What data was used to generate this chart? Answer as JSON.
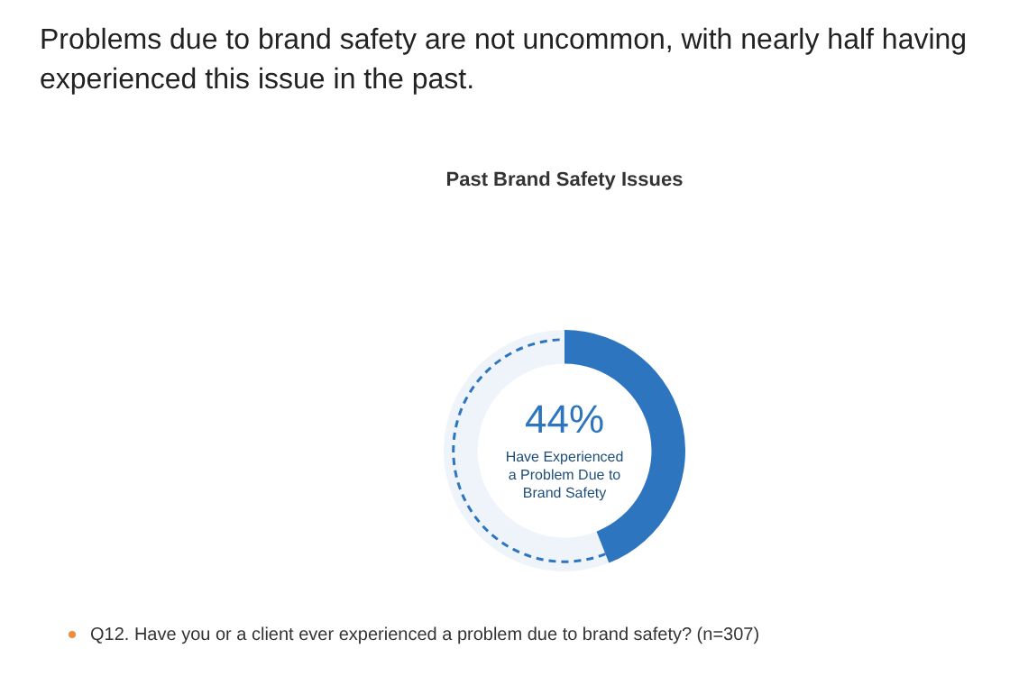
{
  "chart_data": {
    "type": "donut",
    "title": "Problems due to brand safety are not uncommon, with nearly half having  experienced this issue in the past.",
    "subtitle": "Past Brand Safety Issues",
    "categories": [
      "Have Experienced a Problem Due to Brand Safety",
      null
    ],
    "values": [
      44,
      56
    ],
    "colors": [
      "#2e75c0",
      "#2e75c0"
    ],
    "value_labels": [
      "44%",
      null
    ],
    "legend": false,
    "annotations": [
      "Q12. Have you or a client ever experienced a problem due to brand safety? (n=307)"
    ]
  }
}
